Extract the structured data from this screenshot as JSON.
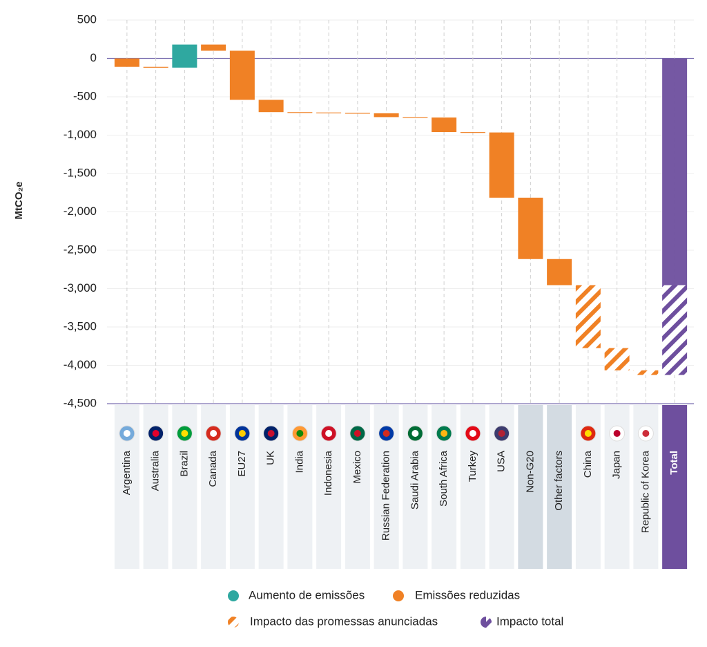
{
  "chart_data": {
    "type": "waterfall",
    "y_label": "MtCO₂e",
    "categories": [
      "Argentina",
      "Australia",
      "Brazil",
      "Canada",
      "EU27",
      "UK",
      "India",
      "Indonesia",
      "Mexico",
      "Russian Federation",
      "Saudi Arabia",
      "South Africa",
      "Turkey",
      "USA",
      "Non-G20",
      "Other factors",
      "China",
      "Japan",
      "Republic of Korea",
      "Total"
    ],
    "series": [
      {
        "name": "Aumento de emissões",
        "color": "#2fa8a0",
        "hatched": false,
        "values": [
          null,
          null,
          300,
          null,
          null,
          null,
          null,
          null,
          null,
          null,
          null,
          null,
          null,
          null,
          null,
          null,
          null,
          null,
          null,
          null
        ]
      },
      {
        "name": "Emissões reduzidas",
        "color": "#f08125",
        "hatched": false,
        "values": [
          -110,
          -10,
          null,
          -80,
          -640,
          -160,
          -5,
          -5,
          -5,
          -50,
          -5,
          -190,
          -5,
          -850,
          -800,
          -340,
          null,
          null,
          null,
          null
        ]
      },
      {
        "name": "Impacto total",
        "color": "#6e4f9e",
        "hatched": false,
        "values": [
          null,
          null,
          null,
          null,
          null,
          null,
          null,
          null,
          null,
          null,
          null,
          null,
          null,
          null,
          null,
          null,
          null,
          null,
          null,
          -2955
        ]
      },
      {
        "name": "Impacto das promessas anunciadas",
        "color": "#f08125",
        "hatched": true,
        "values": [
          null,
          null,
          null,
          null,
          null,
          null,
          null,
          null,
          null,
          null,
          null,
          null,
          null,
          null,
          null,
          null,
          -820,
          -290,
          -60,
          -1170
        ]
      }
    ],
    "ylim": [
      -4500,
      500
    ],
    "yticks": [
      500,
      0,
      -500,
      {
        "value": -1000,
        "label": "-1,000"
      },
      {
        "value": -1500,
        "label": "-1,500"
      },
      {
        "value": -2000,
        "label": "-2,000"
      },
      {
        "value": -2500,
        "label": "-2,500"
      },
      {
        "value": -3000,
        "label": "-3,000"
      },
      {
        "value": -3500,
        "label": "-3,500"
      },
      {
        "value": -4000,
        "label": "-4,000"
      },
      {
        "value": -4500,
        "label": "-4,500"
      }
    ],
    "grid": true
  }
}
